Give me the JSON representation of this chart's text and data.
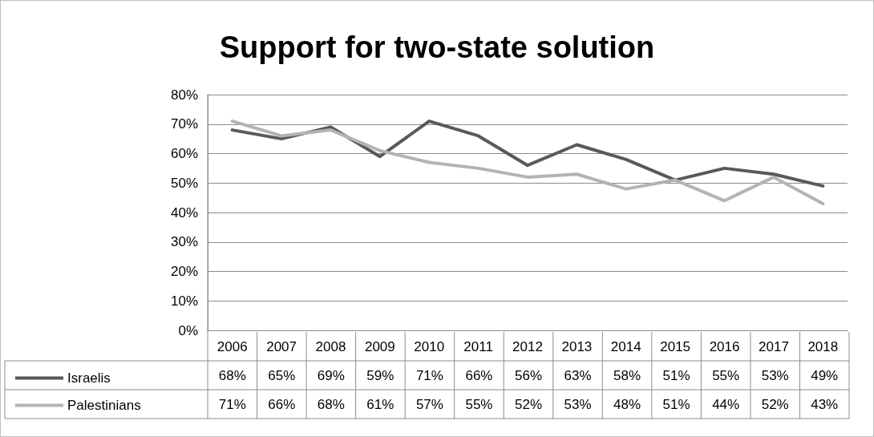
{
  "chart_data": {
    "type": "line",
    "title": "Support for two-state solution",
    "categories": [
      "2006",
      "2007",
      "2008",
      "2009",
      "2010",
      "2011",
      "2012",
      "2013",
      "2014",
      "2015",
      "2016",
      "2017",
      "2018"
    ],
    "series": [
      {
        "name": "Israelis",
        "color": "#595959",
        "values": [
          68,
          65,
          69,
          59,
          71,
          66,
          56,
          63,
          58,
          51,
          55,
          53,
          49
        ],
        "value_labels": [
          "68%",
          "65%",
          "69%",
          "59%",
          "71%",
          "66%",
          "56%",
          "63%",
          "58%",
          "51%",
          "55%",
          "53%",
          "49%"
        ]
      },
      {
        "name": "Palestinians",
        "color": "#b3b3b3",
        "values": [
          71,
          66,
          68,
          61,
          57,
          55,
          52,
          53,
          48,
          51,
          44,
          52,
          43
        ],
        "value_labels": [
          "71%",
          "66%",
          "68%",
          "61%",
          "57%",
          "55%",
          "52%",
          "53%",
          "48%",
          "51%",
          "44%",
          "52%",
          "43%"
        ]
      }
    ],
    "ylim": [
      0,
      80
    ],
    "yticks": [
      {
        "value": 0,
        "label": "0%"
      },
      {
        "value": 10,
        "label": "10%"
      },
      {
        "value": 20,
        "label": "20%"
      },
      {
        "value": 30,
        "label": "30%"
      },
      {
        "value": 40,
        "label": "40%"
      },
      {
        "value": 50,
        "label": "50%"
      },
      {
        "value": 60,
        "label": "60%"
      },
      {
        "value": 70,
        "label": "70%"
      },
      {
        "value": 80,
        "label": "80%"
      }
    ],
    "grid": "y",
    "legend": "bottom",
    "marker": "none",
    "line_style": "solid"
  }
}
